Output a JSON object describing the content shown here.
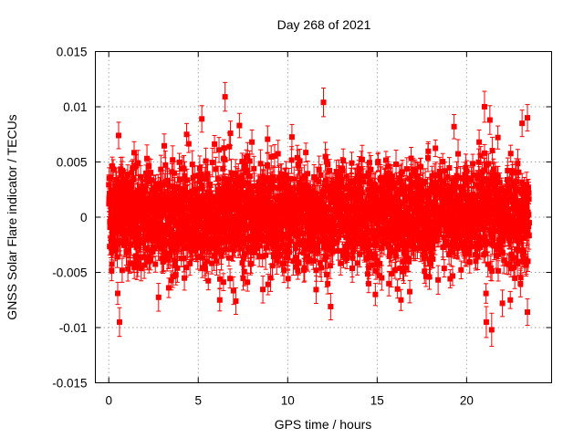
{
  "chart_data": {
    "type": "scatter",
    "title": "Day 268 of 2021",
    "xlabel": "GPS time / hours",
    "ylabel": "GNSS Solar Flare indicator / TECUs",
    "xlim": [
      -0.75,
      24.75
    ],
    "ylim": [
      -0.015,
      0.015
    ],
    "x_ticks": [
      0,
      5,
      10,
      15,
      20
    ],
    "x_tick_labels": [
      "0",
      "5",
      "10",
      "15",
      "20"
    ],
    "y_ticks": [
      -0.015,
      -0.01,
      -0.005,
      0,
      0.005,
      0.01,
      0.015
    ],
    "y_tick_labels": [
      "-0.015",
      "-0.01",
      "-0.005",
      "0",
      "0.005",
      "0.01",
      "0.015"
    ],
    "grid": true,
    "legend": "none",
    "marker": "square",
    "color": "#ff0000",
    "sampling_hours": 0.0083333,
    "series": [
      {
        "x_start": 0,
        "x_end": 23.5,
        "n_points": 2820,
        "typical_spread_sigma": 0.0023,
        "typical_error_bar": 0.001,
        "highlight_points": [
          {
            "x": 0.55,
            "y": 0.0074,
            "err": 0.0012
          },
          {
            "x": 0.6,
            "y": -0.0095,
            "err": 0.0013
          },
          {
            "x": 0.5,
            "y": -0.0069,
            "err": 0.001
          },
          {
            "x": 5.2,
            "y": 0.0089,
            "err": 0.0012
          },
          {
            "x": 6.5,
            "y": 0.0109,
            "err": 0.0013
          },
          {
            "x": 6.8,
            "y": 0.0076,
            "err": 0.0011
          },
          {
            "x": 7.3,
            "y": 0.0083,
            "err": 0.0011
          },
          {
            "x": 7.1,
            "y": -0.0076,
            "err": 0.0012
          },
          {
            "x": 8.0,
            "y": 0.0068,
            "err": 0.0011
          },
          {
            "x": 12.0,
            "y": 0.0104,
            "err": 0.0013
          },
          {
            "x": 12.4,
            "y": -0.0081,
            "err": 0.0012
          },
          {
            "x": 14.9,
            "y": -0.007,
            "err": 0.001
          },
          {
            "x": 19.3,
            "y": 0.0082,
            "err": 0.0011
          },
          {
            "x": 20.7,
            "y": 0.0068,
            "err": 0.0011
          },
          {
            "x": 21.0,
            "y": 0.01,
            "err": 0.0014
          },
          {
            "x": 21.1,
            "y": -0.0095,
            "err": 0.0014
          },
          {
            "x": 21.4,
            "y": -0.0102,
            "err": 0.0015
          },
          {
            "x": 21.3,
            "y": 0.0088,
            "err": 0.0013
          },
          {
            "x": 22.0,
            "y": -0.0078,
            "err": 0.0012
          },
          {
            "x": 23.1,
            "y": 0.0085,
            "err": 0.0012
          },
          {
            "x": 23.4,
            "y": 0.009,
            "err": 0.0012
          },
          {
            "x": 23.4,
            "y": -0.0086,
            "err": 0.0012
          }
        ]
      }
    ]
  }
}
